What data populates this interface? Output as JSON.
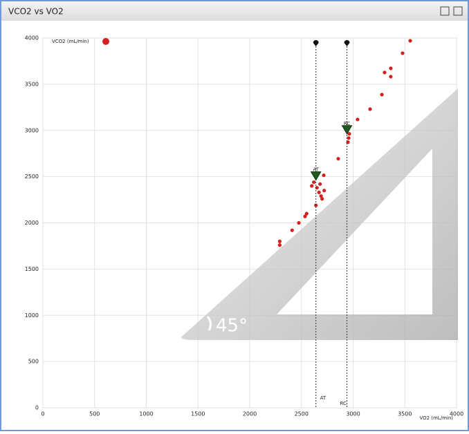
{
  "chart_data": {
    "type": "scatter",
    "title": "VCO2 vs VO2",
    "x_label": "VO2 (mL/min)",
    "x": [
      2290,
      2290,
      2410,
      2475,
      2535,
      2550,
      2640,
      2600,
      2620,
      2650,
      2670,
      2690,
      2700,
      2680,
      2720,
      2716,
      2856,
      2950,
      2957,
      2963,
      3043,
      3164,
      3278,
      3304,
      3364,
      3364,
      3478,
      3552
    ],
    "series": [
      {
        "name": "VCO2 (mL/min)",
        "color": "#d42020",
        "values": [
          1800,
          1760,
          1920,
          2000,
          2070,
          2100,
          2190,
          2400,
          2440,
          2380,
          2330,
          2290,
          2260,
          2420,
          2350,
          2515,
          2694,
          2873,
          2918,
          2963,
          3119,
          3231,
          3388,
          3627,
          3672,
          3582,
          3836,
          3970
        ]
      }
    ],
    "thresholds": [
      {
        "label": "AT",
        "x": 2640,
        "y": 2500
      },
      {
        "label": "RC",
        "x": 2940,
        "y": 3000
      }
    ],
    "annotation": "45°",
    "xlim": [
      0,
      4000
    ],
    "ylim": [
      0,
      4000
    ],
    "xticks": [
      0,
      500,
      1000,
      1500,
      2000,
      2500,
      3000,
      3500,
      4000
    ],
    "yticks": [
      0,
      500,
      1000,
      1500,
      2000,
      2500,
      3000,
      3500,
      4000
    ],
    "grid": true
  }
}
